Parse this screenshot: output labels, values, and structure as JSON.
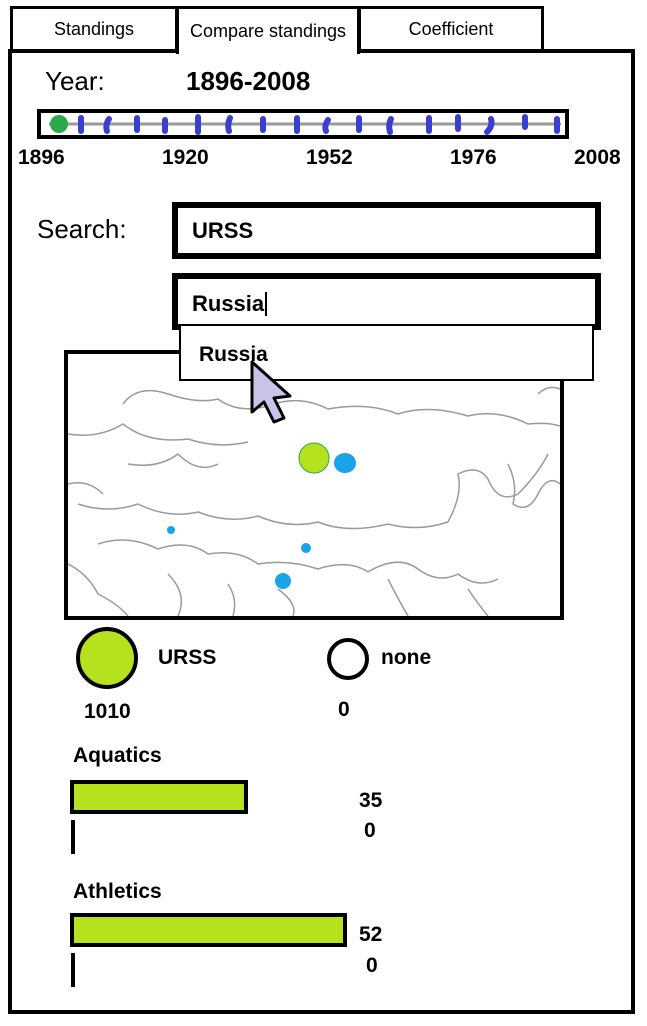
{
  "tabs": [
    {
      "label": "Standings"
    },
    {
      "label": "Compare standings"
    },
    {
      "label": "Coefficient"
    }
  ],
  "year": {
    "label": "Year:",
    "value": "1896-2008",
    "ticks": [
      "1896",
      "1920",
      "1952",
      "1976",
      "2008"
    ]
  },
  "search": {
    "label": "Search:",
    "field1_value": "URSS",
    "field2_value": "Russia",
    "suggestion": "Russia"
  },
  "legend": [
    {
      "name": "URSS",
      "value": "1010",
      "color": "#b5e21c"
    },
    {
      "name": "none",
      "value": "0",
      "color": "#ffffff"
    }
  ],
  "sports": [
    {
      "name": "Aquatics",
      "value1": "35",
      "value2": "0",
      "fraction": 0.35
    },
    {
      "name": "Athletics",
      "value1": "52",
      "value2": "0",
      "fraction": 0.52
    }
  ],
  "colors": {
    "accent": "#b5e21c",
    "marker_blue": "#3a3fd0",
    "slider_start": "#2aa84a",
    "map_dot": "#1aa3e8"
  }
}
